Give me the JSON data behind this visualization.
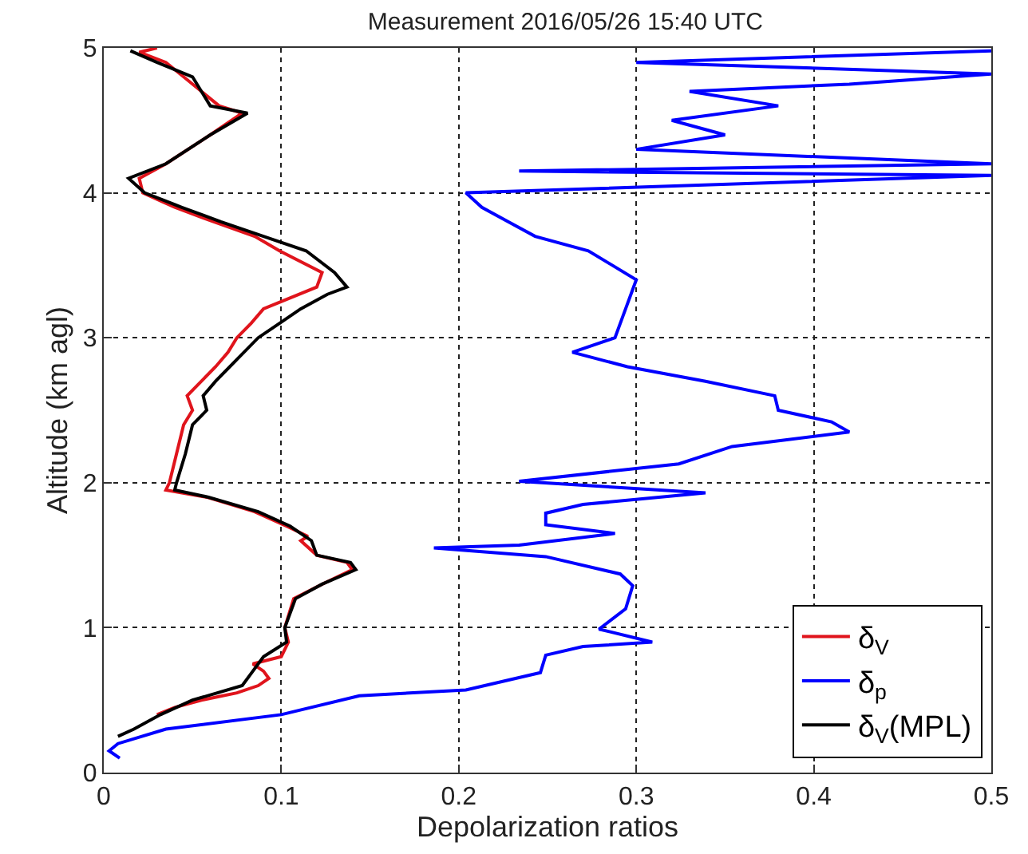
{
  "chart_data": {
    "type": "line",
    "title": "Measurement 2016/05/26 15:40 UTC",
    "xlabel": "Depolarization ratios",
    "ylabel": "Altitude (km agl)",
    "xlim": [
      0,
      0.5
    ],
    "xticks": [
      0,
      0.1,
      0.2,
      0.3,
      0.4,
      0.5
    ],
    "ylim": [
      0,
      5
    ],
    "yticks": [
      0,
      1,
      2,
      3,
      4,
      5
    ],
    "grid": true,
    "legend": "bottom right",
    "line_style": "solid",
    "marker": "none",
    "series": [
      {
        "name": "δ$_{V}$",
        "color": "#e0141c",
        "x": [
          0.03,
          0.04,
          0.055,
          0.075,
          0.087,
          0.093,
          0.09,
          0.084,
          0.1,
          0.104,
          0.102,
          0.107,
          0.123,
          0.14,
          0.137,
          0.12,
          0.111,
          0.115,
          0.103,
          0.085,
          0.058,
          0.035,
          0.037,
          0.041,
          0.045,
          0.05,
          0.047,
          0.055,
          0.063,
          0.07,
          0.075,
          0.083,
          0.09,
          0.12,
          0.123,
          0.099,
          0.085,
          0.062,
          0.04,
          0.022,
          0.02,
          0.035,
          0.06,
          0.078,
          0.065,
          0.045,
          0.035,
          0.02,
          0.03
        ],
        "values": [
          0.4,
          0.45,
          0.5,
          0.55,
          0.6,
          0.65,
          0.7,
          0.75,
          0.8,
          0.9,
          1.0,
          1.2,
          1.3,
          1.4,
          1.45,
          1.5,
          1.6,
          1.63,
          1.7,
          1.8,
          1.9,
          1.95,
          2.0,
          2.2,
          2.4,
          2.5,
          2.6,
          2.7,
          2.8,
          2.9,
          3.0,
          3.1,
          3.2,
          3.35,
          3.45,
          3.6,
          3.7,
          3.8,
          3.9,
          4.0,
          4.1,
          4.2,
          4.4,
          4.55,
          4.6,
          4.8,
          4.9,
          4.97,
          5.0
        ]
      },
      {
        "name": "δ$_{p}$",
        "color": "#0000ff",
        "x": [
          0.009,
          0.003,
          0.008,
          0.035,
          0.1,
          0.144,
          0.204,
          0.246,
          0.249,
          0.27,
          0.309,
          0.279,
          0.294,
          0.298,
          0.291,
          0.249,
          0.186,
          0.234,
          0.288,
          0.249,
          0.249,
          0.27,
          0.339,
          0.234,
          0.324,
          0.354,
          0.42,
          0.41,
          0.38,
          0.378,
          0.339,
          0.295,
          0.264,
          0.288,
          0.294,
          0.3,
          0.273,
          0.243,
          0.228,
          0.213,
          0.204,
          0.5,
          0.234,
          0.5,
          0.3,
          0.35,
          0.32,
          0.38,
          0.33,
          0.42,
          0.5,
          0.3,
          0.5
        ],
        "values": [
          0.1,
          0.15,
          0.2,
          0.3,
          0.4,
          0.53,
          0.57,
          0.69,
          0.81,
          0.87,
          0.9,
          0.99,
          1.13,
          1.29,
          1.37,
          1.49,
          1.55,
          1.57,
          1.65,
          1.71,
          1.79,
          1.85,
          1.93,
          2.01,
          2.13,
          2.25,
          2.35,
          2.42,
          2.5,
          2.6,
          2.7,
          2.8,
          2.9,
          3.0,
          3.2,
          3.4,
          3.6,
          3.7,
          3.8,
          3.9,
          4.0,
          4.12,
          4.15,
          4.2,
          4.3,
          4.4,
          4.5,
          4.6,
          4.7,
          4.75,
          4.82,
          4.9,
          4.98
        ]
      },
      {
        "name": "δ$_{V}$(MPL)",
        "color": "#000000",
        "x": [
          0.008,
          0.017,
          0.032,
          0.05,
          0.078,
          0.084,
          0.09,
          0.103,
          0.102,
          0.108,
          0.123,
          0.142,
          0.139,
          0.12,
          0.117,
          0.105,
          0.087,
          0.059,
          0.04,
          0.041,
          0.046,
          0.05,
          0.058,
          0.056,
          0.063,
          0.075,
          0.087,
          0.099,
          0.111,
          0.126,
          0.137,
          0.13,
          0.114,
          0.09,
          0.066,
          0.044,
          0.023,
          0.014,
          0.035,
          0.06,
          0.081,
          0.06,
          0.05,
          0.03,
          0.015
        ],
        "values": [
          0.25,
          0.3,
          0.4,
          0.5,
          0.6,
          0.7,
          0.8,
          0.9,
          1.0,
          1.2,
          1.3,
          1.4,
          1.45,
          1.5,
          1.6,
          1.7,
          1.8,
          1.9,
          1.95,
          2.0,
          2.2,
          2.4,
          2.5,
          2.6,
          2.7,
          2.85,
          3.0,
          3.1,
          3.2,
          3.3,
          3.35,
          3.45,
          3.6,
          3.7,
          3.8,
          3.9,
          4.0,
          4.1,
          4.2,
          4.4,
          4.55,
          4.6,
          4.8,
          4.9,
          4.98
        ]
      }
    ]
  }
}
